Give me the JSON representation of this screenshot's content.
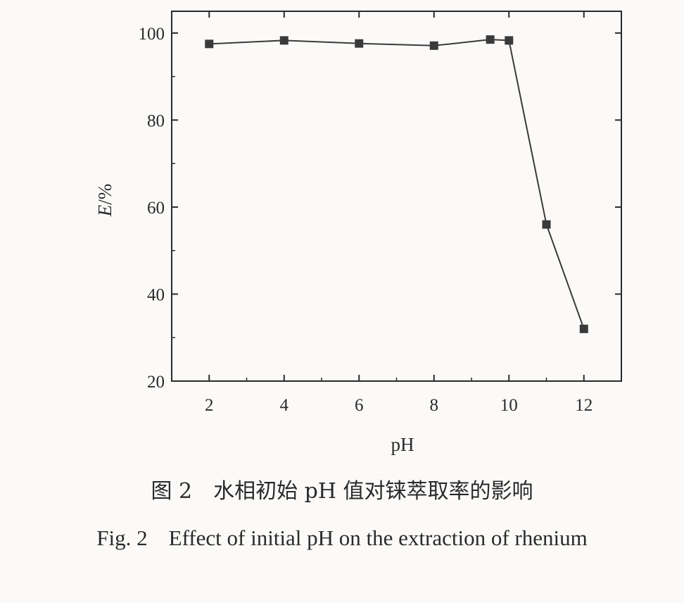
{
  "chart_data": {
    "type": "line",
    "xlabel": "pH",
    "ylabel": "E/%",
    "xlim": [
      1,
      13
    ],
    "ylim": [
      20,
      105
    ],
    "x_ticks": [
      2,
      4,
      6,
      8,
      10,
      12
    ],
    "y_ticks": [
      20,
      40,
      60,
      80,
      100
    ],
    "grid": false,
    "marker": "square",
    "series": [
      {
        "x": [
          2,
          4,
          6,
          8,
          9.5,
          10,
          11,
          12
        ],
        "y": [
          97.5,
          98.3,
          97.6,
          97.1,
          98.5,
          98.3,
          56,
          32
        ]
      }
    ],
    "colors": {
      "line": "#3a3a3a",
      "marker": "#3a3a3a",
      "axis": "#2a2a2a"
    }
  },
  "caption": {
    "cn_number": "图 2",
    "cn_text": "水相初始 pH 值对铼萃取率的影响",
    "en_number": "Fig. 2",
    "en_text": "Effect of initial pH on the extraction of rhenium"
  }
}
